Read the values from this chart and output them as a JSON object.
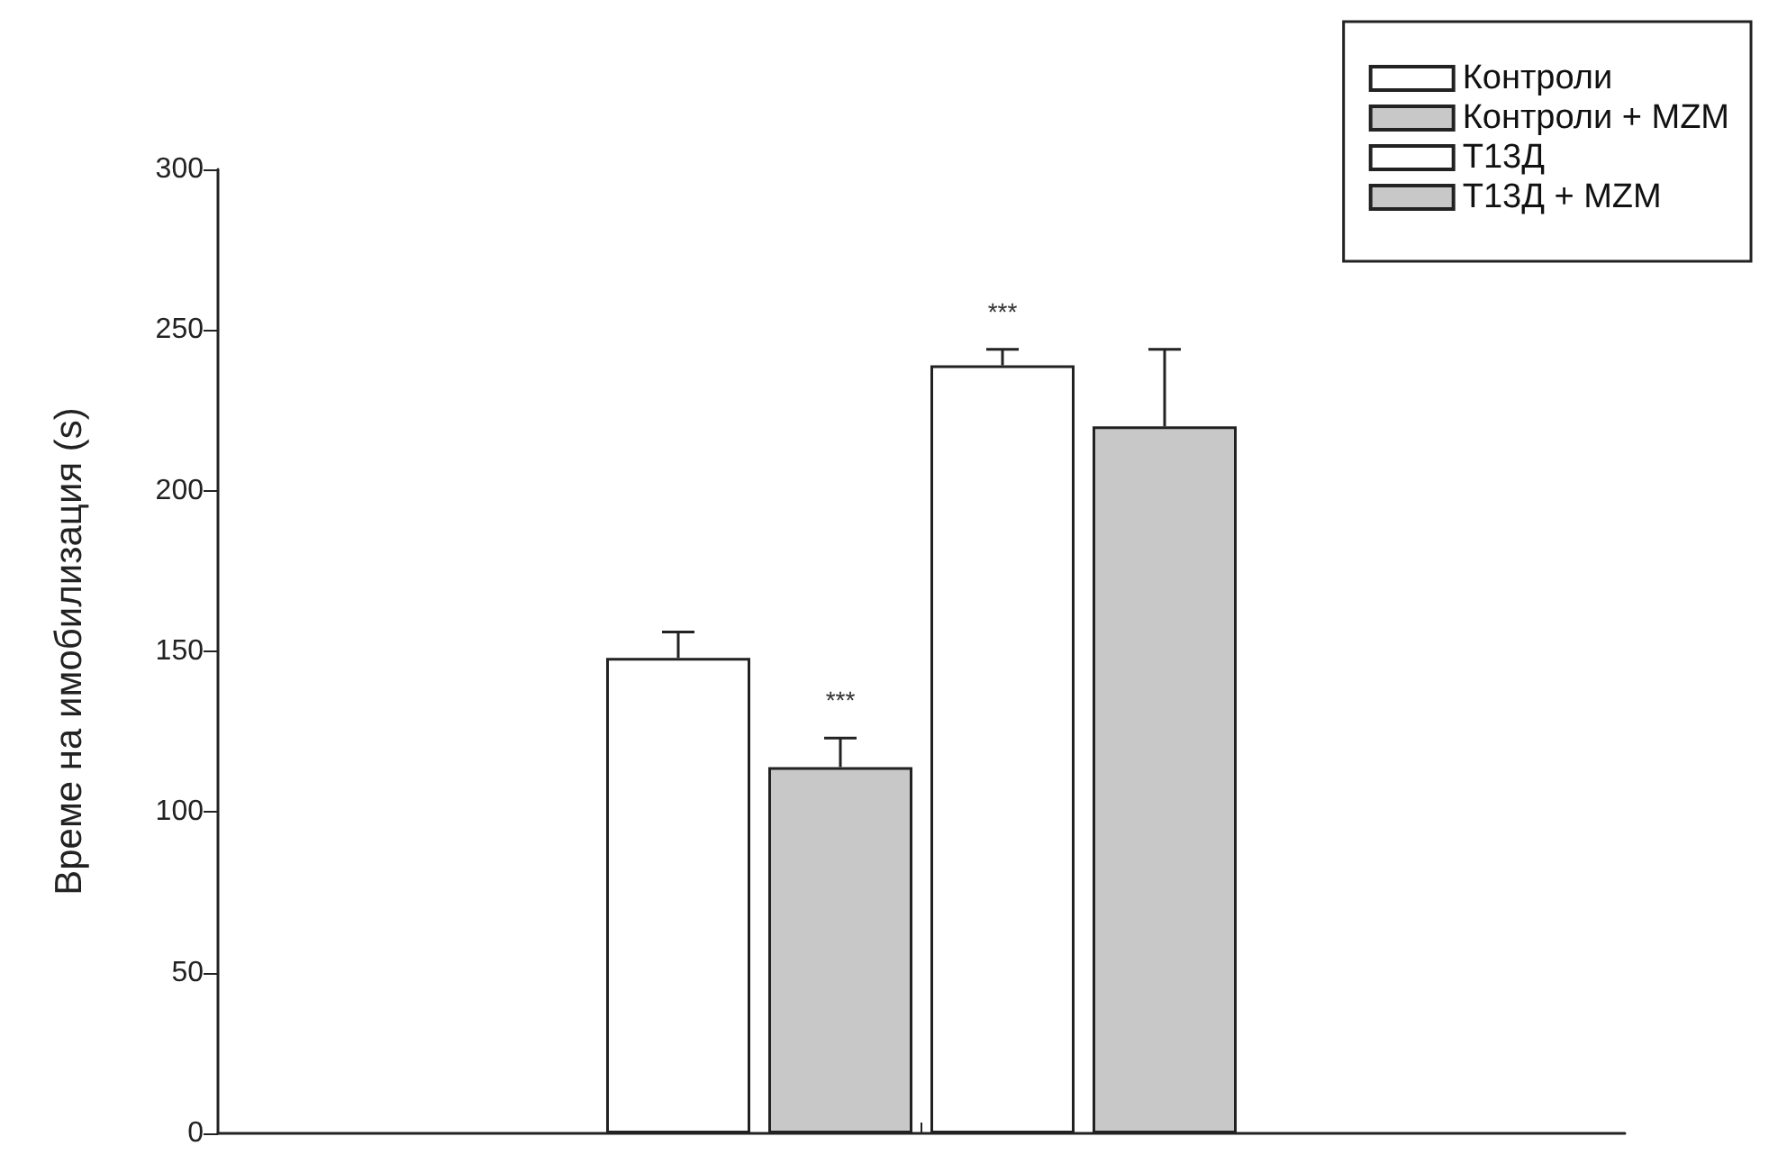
{
  "chart_data": {
    "type": "bar",
    "ylabel": "Време на имобилизация (s)",
    "categories": [
      null
    ],
    "ylim": [
      0,
      300
    ],
    "yticks": [
      0,
      50,
      100,
      150,
      200,
      250,
      300
    ],
    "grid": false,
    "legend": "top right",
    "series": [
      {
        "name": "Контроли",
        "color": "#ffffff",
        "values": [
          148
        ],
        "errors": [
          8
        ],
        "value_labels": [
          null
        ]
      },
      {
        "name": "Контроли + MZM",
        "color": "#c8c8c8",
        "values": [
          114
        ],
        "errors": [
          9
        ],
        "value_labels": [
          "***"
        ]
      },
      {
        "name": "Т13Д",
        "color": "#ffffff",
        "values": [
          239
        ],
        "errors": [
          5
        ],
        "value_labels": [
          "***"
        ]
      },
      {
        "name": "Т13Д + MZM",
        "color": "#c8c8c8",
        "values": [
          220
        ],
        "errors": [
          24
        ],
        "value_labels": [
          null
        ]
      }
    ]
  }
}
